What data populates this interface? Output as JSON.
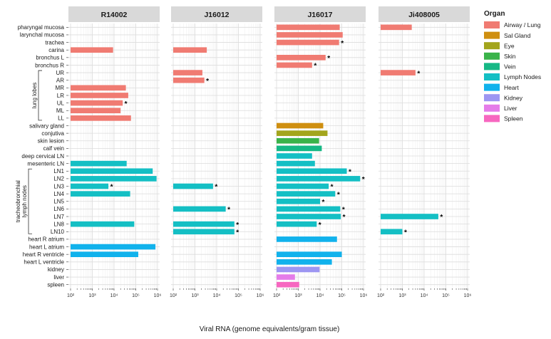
{
  "chart_data": {
    "type": "bar",
    "orientation": "horizontal",
    "x_scale": "log10",
    "xlim": [
      100,
      1000000
    ],
    "xlabel": "Viral RNA (genome equivalents/gram tissue)",
    "x_ticks": [
      {
        "value": 100,
        "label": "10²"
      },
      {
        "value": 1000,
        "label": "10³"
      },
      {
        "value": 10000,
        "label": "10⁴"
      },
      {
        "value": 100000,
        "label": "10⁵"
      },
      {
        "value": 1000000,
        "label": "10⁶"
      }
    ],
    "panels": [
      "R14002",
      "J16012",
      "J16017",
      "Ji408005"
    ],
    "categories": [
      {
        "name": "pharyngal mucosa",
        "organ": "Airway / Lung"
      },
      {
        "name": "larynchal mucosa",
        "organ": "Airway / Lung"
      },
      {
        "name": "trachea",
        "organ": "Airway / Lung"
      },
      {
        "name": "carina",
        "organ": "Airway / Lung"
      },
      {
        "name": "bronchus L",
        "organ": "Airway / Lung"
      },
      {
        "name": "bronchus R",
        "organ": "Airway / Lung"
      },
      {
        "name": "UR",
        "organ": "Airway / Lung"
      },
      {
        "name": "AR",
        "organ": "Airway / Lung"
      },
      {
        "name": "MR",
        "organ": "Airway / Lung"
      },
      {
        "name": "LR",
        "organ": "Airway / Lung"
      },
      {
        "name": "UL",
        "organ": "Airway / Lung"
      },
      {
        "name": "ML",
        "organ": "Airway / Lung"
      },
      {
        "name": "LL",
        "organ": "Airway / Lung"
      },
      {
        "name": "salivary gland",
        "organ": "Sal Gland"
      },
      {
        "name": "conjutiva",
        "organ": "Eye"
      },
      {
        "name": "skin lesion",
        "organ": "Skin"
      },
      {
        "name": "calf vein",
        "organ": "Vein"
      },
      {
        "name": "deep cervical LN",
        "organ": "Lymph Nodes"
      },
      {
        "name": "mesenteric LN",
        "organ": "Lymph Nodes"
      },
      {
        "name": "LN1",
        "organ": "Lymph Nodes"
      },
      {
        "name": "LN2",
        "organ": "Lymph Nodes"
      },
      {
        "name": "LN3",
        "organ": "Lymph Nodes"
      },
      {
        "name": "LN4",
        "organ": "Lymph Nodes"
      },
      {
        "name": "LN5",
        "organ": "Lymph Nodes"
      },
      {
        "name": "LN6",
        "organ": "Lymph Nodes"
      },
      {
        "name": "LN7",
        "organ": "Lymph Nodes"
      },
      {
        "name": "LN8",
        "organ": "Lymph Nodes"
      },
      {
        "name": "LN10",
        "organ": "Lymph Nodes"
      },
      {
        "name": "heart R atrium",
        "organ": "Heart"
      },
      {
        "name": "heart L atrium",
        "organ": "Heart"
      },
      {
        "name": "heart R ventricle",
        "organ": "Heart"
      },
      {
        "name": "heart L ventricle",
        "organ": "Heart"
      },
      {
        "name": "kidney",
        "organ": "Kidney"
      },
      {
        "name": "liver",
        "organ": "Liver"
      },
      {
        "name": "spleen",
        "organ": "Spleen"
      }
    ],
    "groups": [
      {
        "label": "lung lobes",
        "from": "UR",
        "to": "LL"
      },
      {
        "label": "tracheobronchial",
        "label2": "lymph nodes",
        "from": "LN1",
        "to": "LN10"
      }
    ],
    "series": [
      {
        "name": "R14002",
        "bars": [
          {
            "category": "carina",
            "value": 9000,
            "star": false
          },
          {
            "category": "MR",
            "value": 35000,
            "star": false
          },
          {
            "category": "LR",
            "value": 45000,
            "star": false
          },
          {
            "category": "UL",
            "value": 25000,
            "star": true
          },
          {
            "category": "ML",
            "value": 20000,
            "star": false
          },
          {
            "category": "LL",
            "value": 60000,
            "star": false
          },
          {
            "category": "mesenteric LN",
            "value": 38000,
            "star": false
          },
          {
            "category": "LN1",
            "value": 600000,
            "star": false
          },
          {
            "category": "LN2",
            "value": 900000,
            "star": false
          },
          {
            "category": "LN3",
            "value": 5500,
            "star": true
          },
          {
            "category": "LN4",
            "value": 55000,
            "star": false
          },
          {
            "category": "LN8",
            "value": 85000,
            "star": false
          },
          {
            "category": "heart L atrium",
            "value": 800000,
            "star": false
          },
          {
            "category": "heart R ventricle",
            "value": 130000,
            "star": false
          }
        ]
      },
      {
        "name": "J16012",
        "bars": [
          {
            "category": "carina",
            "value": 3500,
            "star": false
          },
          {
            "category": "UR",
            "value": 2200,
            "star": false
          },
          {
            "category": "AR",
            "value": 2700,
            "star": true
          },
          {
            "category": "LN3",
            "value": 6800,
            "star": true
          },
          {
            "category": "LN6",
            "value": 26000,
            "star": true
          },
          {
            "category": "LN8",
            "value": 65000,
            "star": true
          },
          {
            "category": "LN10",
            "value": 65000,
            "star": true
          }
        ]
      },
      {
        "name": "J16017",
        "bars": [
          {
            "category": "pharyngal mucosa",
            "value": 80000,
            "star": false
          },
          {
            "category": "larynchal mucosa",
            "value": 110000,
            "star": false
          },
          {
            "category": "trachea",
            "value": 75000,
            "star": true
          },
          {
            "category": "bronchus L",
            "value": 18000,
            "star": true
          },
          {
            "category": "bronchus R",
            "value": 4300,
            "star": true
          },
          {
            "category": "salivary gland",
            "value": 14000,
            "star": false
          },
          {
            "category": "conjutiva",
            "value": 22000,
            "star": false
          },
          {
            "category": "skin lesion",
            "value": 9000,
            "star": false
          },
          {
            "category": "calf vein",
            "value": 12000,
            "star": false
          },
          {
            "category": "deep cervical LN",
            "value": 4300,
            "star": false
          },
          {
            "category": "mesenteric LN",
            "value": 5800,
            "star": false
          },
          {
            "category": "LN1",
            "value": 170000,
            "star": true
          },
          {
            "category": "LN2",
            "value": 700000,
            "star": true
          },
          {
            "category": "LN3",
            "value": 25000,
            "star": true
          },
          {
            "category": "LN4",
            "value": 50000,
            "star": true
          },
          {
            "category": "LN5",
            "value": 10000,
            "star": true
          },
          {
            "category": "LN6",
            "value": 85000,
            "star": true
          },
          {
            "category": "LN7",
            "value": 90000,
            "star": true
          },
          {
            "category": "LN8",
            "value": 7000,
            "star": true
          },
          {
            "category": "heart R atrium",
            "value": 60000,
            "star": false
          },
          {
            "category": "heart R ventricle",
            "value": 100000,
            "star": false
          },
          {
            "category": "heart L ventricle",
            "value": 35000,
            "star": false
          },
          {
            "category": "kidney",
            "value": 9500,
            "star": false
          },
          {
            "category": "liver",
            "value": 700,
            "star": false
          },
          {
            "category": "spleen",
            "value": 1100,
            "star": false
          }
        ]
      },
      {
        "name": "Ji408005",
        "bars": [
          {
            "category": "pharyngal mucosa",
            "value": 2700,
            "star": false
          },
          {
            "category": "UR",
            "value": 4000,
            "star": true
          },
          {
            "category": "LN7",
            "value": 45000,
            "star": true
          },
          {
            "category": "LN10",
            "value": 1000,
            "star": true
          }
        ]
      }
    ],
    "legend": {
      "title": "Organ",
      "position": "right",
      "entries": [
        {
          "label": "Airway / Lung",
          "color": "#f07b72"
        },
        {
          "label": "Sal Gland",
          "color": "#cf8f10"
        },
        {
          "label": "Eye",
          "color": "#a3a51c"
        },
        {
          "label": "Skin",
          "color": "#3ab34a"
        },
        {
          "label": "Vein",
          "color": "#16b885"
        },
        {
          "label": "Lymph Nodes",
          "color": "#14bfc4"
        },
        {
          "label": "Heart",
          "color": "#11b2ec"
        },
        {
          "label": "Kidney",
          "color": "#9d96f2"
        },
        {
          "label": "Liver",
          "color": "#e57ce9"
        },
        {
          "label": "Spleen",
          "color": "#f767c0"
        }
      ]
    },
    "star_symbol": "*"
  }
}
